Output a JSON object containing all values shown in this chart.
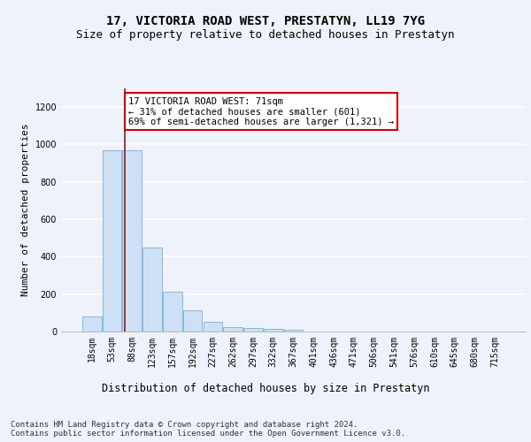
{
  "title": "17, VICTORIA ROAD WEST, PRESTATYN, LL19 7YG",
  "subtitle": "Size of property relative to detached houses in Prestatyn",
  "xlabel": "Distribution of detached houses by size in Prestatyn",
  "ylabel": "Number of detached properties",
  "categories": [
    "18sqm",
    "53sqm",
    "88sqm",
    "123sqm",
    "157sqm",
    "192sqm",
    "227sqm",
    "262sqm",
    "297sqm",
    "332sqm",
    "367sqm",
    "401sqm",
    "436sqm",
    "471sqm",
    "506sqm",
    "541sqm",
    "576sqm",
    "610sqm",
    "645sqm",
    "680sqm",
    "715sqm"
  ],
  "values": [
    80,
    970,
    970,
    450,
    215,
    115,
    50,
    25,
    20,
    12,
    8,
    0,
    0,
    0,
    0,
    0,
    0,
    0,
    0,
    0,
    0
  ],
  "bar_color": "#cde0f5",
  "bar_edgecolor": "#7bafd4",
  "vline_x": 1.65,
  "vline_color": "#8b1a1a",
  "annotation_text": "17 VICTORIA ROAD WEST: 71sqm\n← 31% of detached houses are smaller (601)\n69% of semi-detached houses are larger (1,321) →",
  "annotation_box_facecolor": "#ffffff",
  "annotation_box_edgecolor": "#cc0000",
  "ylim": [
    0,
    1300
  ],
  "yticks": [
    0,
    200,
    400,
    600,
    800,
    1000,
    1200
  ],
  "footer_text": "Contains HM Land Registry data © Crown copyright and database right 2024.\nContains public sector information licensed under the Open Government Licence v3.0.",
  "background_color": "#eef2fa",
  "plot_background": "#eef2fa",
  "grid_color": "#ffffff",
  "title_fontsize": 10,
  "subtitle_fontsize": 9,
  "xlabel_fontsize": 8.5,
  "ylabel_fontsize": 8,
  "tick_fontsize": 7,
  "footer_fontsize": 6.5
}
